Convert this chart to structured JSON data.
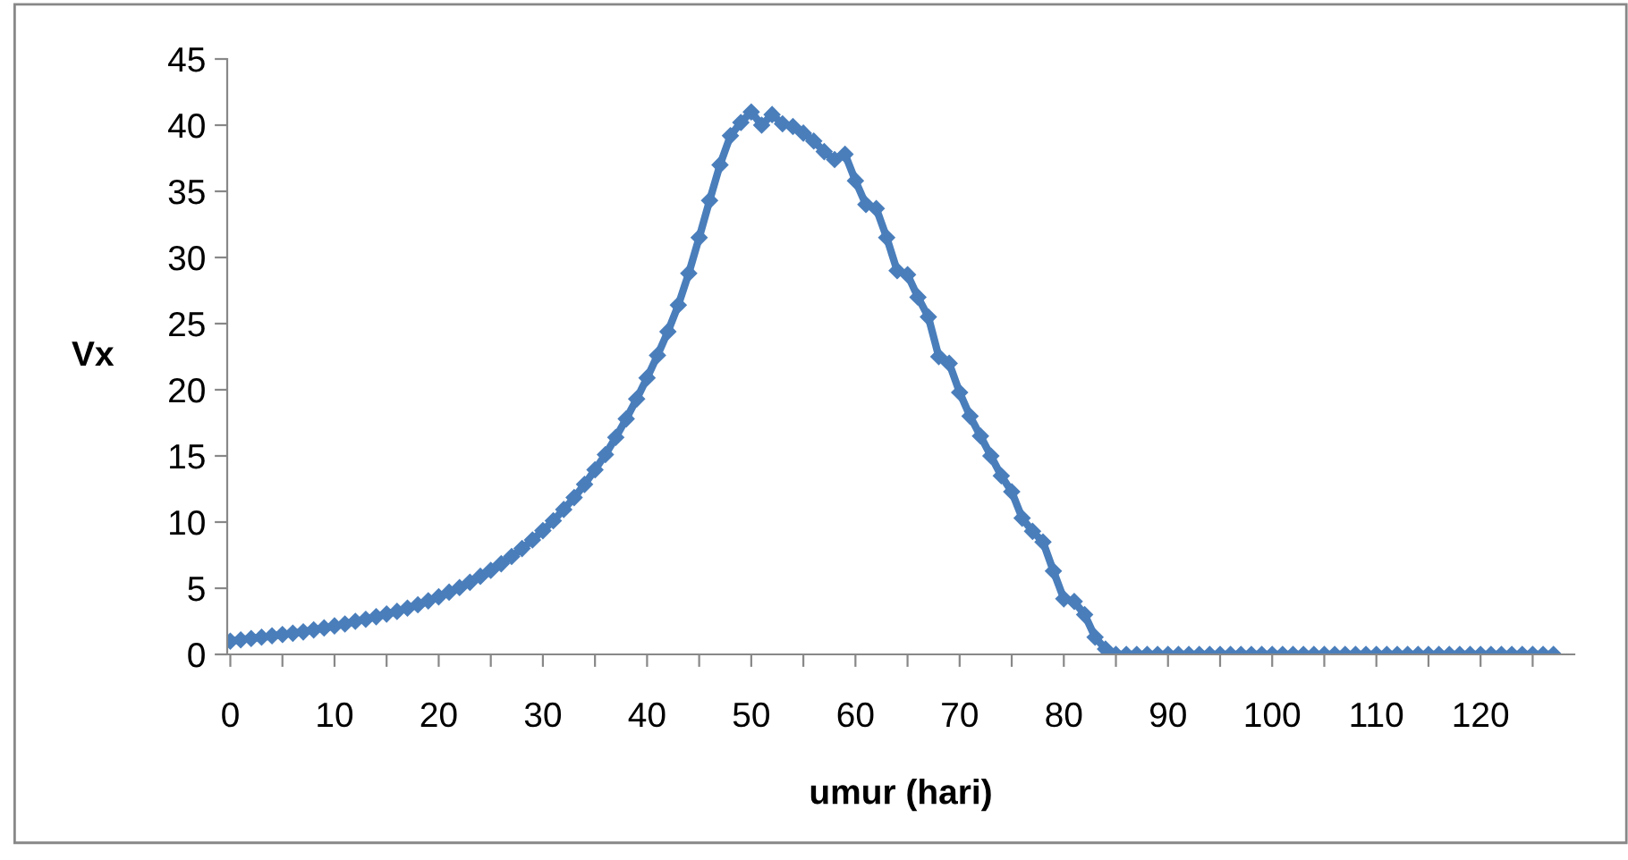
{
  "chart_data": {
    "type": "line",
    "xlabel": "umur (hari)",
    "ylabel": "Vx",
    "x": [
      0,
      1,
      2,
      3,
      4,
      5,
      6,
      7,
      8,
      9,
      10,
      11,
      12,
      13,
      14,
      15,
      16,
      17,
      18,
      19,
      20,
      21,
      22,
      23,
      24,
      25,
      26,
      27,
      28,
      29,
      30,
      31,
      32,
      33,
      34,
      35,
      36,
      37,
      38,
      39,
      40,
      41,
      42,
      43,
      44,
      45,
      46,
      47,
      48,
      49,
      50,
      51,
      52,
      53,
      54,
      55,
      56,
      57,
      58,
      59,
      60,
      61,
      62,
      63,
      64,
      65,
      66,
      67,
      68,
      69,
      70,
      71,
      72,
      73,
      74,
      75,
      76,
      77,
      78,
      79,
      80,
      81,
      82,
      83,
      84,
      85,
      86,
      87,
      88,
      89,
      90,
      91,
      92,
      93,
      94,
      95,
      96,
      97,
      98,
      99,
      100,
      101,
      102,
      103,
      104,
      105,
      106,
      107,
      108,
      109,
      110,
      111,
      112,
      113,
      114,
      115,
      116,
      117,
      118,
      119,
      120,
      121,
      122,
      123,
      124,
      125,
      126,
      127
    ],
    "series": [
      {
        "color": "#4a7ebb",
        "values": [
          1.0,
          1.1,
          1.2,
          1.3,
          1.4,
          1.5,
          1.6,
          1.7,
          1.85,
          2.0,
          2.15,
          2.3,
          2.5,
          2.65,
          2.85,
          3.05,
          3.25,
          3.5,
          3.75,
          4.05,
          4.35,
          4.7,
          5.05,
          5.45,
          5.9,
          6.35,
          6.85,
          7.4,
          8.0,
          8.65,
          9.35,
          10.1,
          10.95,
          11.85,
          12.85,
          13.95,
          15.1,
          16.4,
          17.8,
          19.3,
          20.9,
          22.6,
          24.4,
          26.4,
          28.8,
          31.5,
          34.3,
          37.0,
          39.2,
          40.2,
          41.0,
          40.0,
          40.8,
          40.1,
          39.9,
          39.4,
          38.8,
          38.0,
          37.4,
          37.8,
          35.8,
          34.0,
          33.7,
          31.5,
          29.0,
          28.7,
          27.0,
          25.5,
          22.5,
          22.0,
          19.8,
          18.0,
          16.5,
          15.0,
          13.5,
          12.3,
          10.3,
          9.3,
          8.5,
          6.3,
          4.2,
          4.0,
          3.0,
          1.3,
          0.4,
          0,
          0,
          0,
          0,
          0,
          0,
          0,
          0,
          0,
          0,
          0,
          0,
          0,
          0,
          0,
          0,
          0,
          0,
          0,
          0,
          0,
          0,
          0,
          0,
          0,
          0,
          0,
          0,
          0,
          0,
          0,
          0,
          0,
          0,
          0,
          0,
          0,
          0,
          0,
          0,
          0,
          0,
          0
        ]
      }
    ],
    "xlim": [
      -0.3,
      129
    ],
    "xticks": [
      0,
      {
        "value": 5,
        "label": null
      },
      10,
      {
        "value": 15,
        "label": null
      },
      20,
      {
        "value": 25,
        "label": null
      },
      30,
      {
        "value": 35,
        "label": null
      },
      40,
      {
        "value": 45,
        "label": null
      },
      50,
      {
        "value": 55,
        "label": null
      },
      60,
      {
        "value": 65,
        "label": null
      },
      70,
      {
        "value": 75,
        "label": null
      },
      80,
      {
        "value": 85,
        "label": null
      },
      90,
      {
        "value": 95,
        "label": null
      },
      100,
      {
        "value": 105,
        "label": null
      },
      110,
      {
        "value": 115,
        "label": null
      },
      120,
      {
        "value": 125,
        "label": null
      }
    ],
    "ylim": [
      0,
      45
    ],
    "yticks": [
      0,
      5,
      10,
      15,
      20,
      25,
      30,
      35,
      40,
      45
    ],
    "grid": false,
    "legend": false,
    "marker": "diamond",
    "line_style": "solid"
  }
}
